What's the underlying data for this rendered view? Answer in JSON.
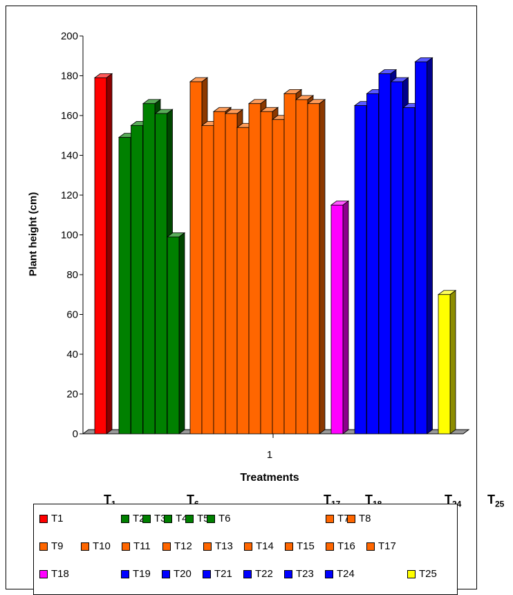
{
  "chart_data": {
    "type": "bar",
    "xlabel": "Treatments",
    "ylabel": "Plant height (cm)",
    "ylim": [
      0,
      200
    ],
    "yticks": [
      0,
      20,
      40,
      60,
      80,
      100,
      120,
      140,
      160,
      180,
      200
    ],
    "categories": [
      "1"
    ],
    "grid": false,
    "legend_position": "bottom",
    "series": [
      {
        "name": "T1",
        "values": [
          179
        ],
        "color": "#ff0000"
      },
      {
        "name": "T2",
        "values": [
          149
        ],
        "color": "#008000"
      },
      {
        "name": "T3",
        "values": [
          155
        ],
        "color": "#008000"
      },
      {
        "name": "T4",
        "values": [
          166
        ],
        "color": "#008000"
      },
      {
        "name": "T5",
        "values": [
          161
        ],
        "color": "#008000"
      },
      {
        "name": "T6",
        "values": [
          99
        ],
        "color": "#008000"
      },
      {
        "name": "T7",
        "values": [
          177
        ],
        "color": "#ff6600"
      },
      {
        "name": "T8",
        "values": [
          155
        ],
        "color": "#ff6600"
      },
      {
        "name": "T9",
        "values": [
          162
        ],
        "color": "#ff6600"
      },
      {
        "name": "T10",
        "values": [
          161
        ],
        "color": "#ff6600"
      },
      {
        "name": "T11",
        "values": [
          154
        ],
        "color": "#ff6600"
      },
      {
        "name": "T12",
        "values": [
          166
        ],
        "color": "#ff6600"
      },
      {
        "name": "T13",
        "values": [
          162
        ],
        "color": "#ff6600"
      },
      {
        "name": "T14",
        "values": [
          158
        ],
        "color": "#ff6600"
      },
      {
        "name": "T15",
        "values": [
          171
        ],
        "color": "#ff6600"
      },
      {
        "name": "T16",
        "values": [
          168
        ],
        "color": "#ff6600"
      },
      {
        "name": "T17",
        "values": [
          166
        ],
        "color": "#ff6600"
      },
      {
        "name": "T18",
        "values": [
          115
        ],
        "color": "#ff00ff"
      },
      {
        "name": "T19",
        "values": [
          165
        ],
        "color": "#0000ff"
      },
      {
        "name": "T20",
        "values": [
          171
        ],
        "color": "#0000ff"
      },
      {
        "name": "T21",
        "values": [
          181
        ],
        "color": "#0000ff"
      },
      {
        "name": "T22",
        "values": [
          177
        ],
        "color": "#0000ff"
      },
      {
        "name": "T23",
        "values": [
          164
        ],
        "color": "#0000ff"
      },
      {
        "name": "T24",
        "values": [
          187
        ],
        "color": "#0000ff"
      },
      {
        "name": "T25",
        "values": [
          70
        ],
        "color": "#ffff00"
      }
    ],
    "group_annotations": [
      {
        "base": "T",
        "sub": "1"
      },
      {
        "base": "T",
        "sub": "6"
      },
      {
        "base": "T",
        "sub": "17"
      },
      {
        "base": "T",
        "sub": "18"
      },
      {
        "base": "T",
        "sub": "24"
      },
      {
        "base": "T",
        "sub": "25"
      }
    ]
  }
}
